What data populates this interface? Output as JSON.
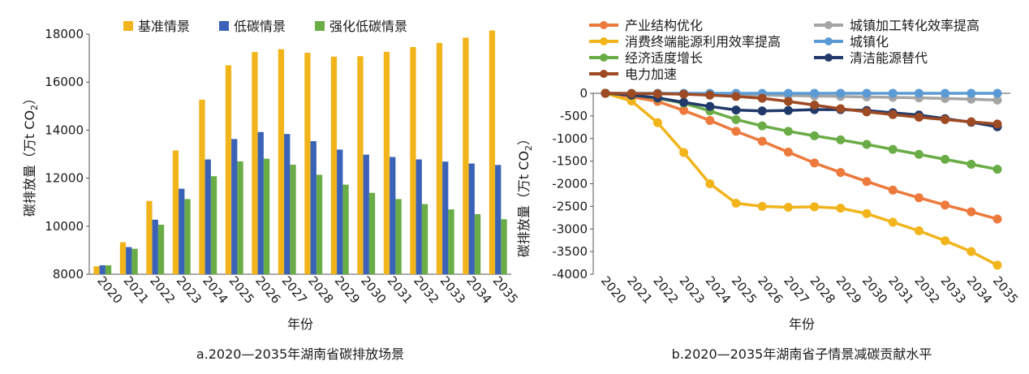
{
  "chart_data": [
    {
      "type": "bar",
      "title": "a.2020—2035年湖南省碳排放场景",
      "xlabel": "年份",
      "ylabel": "碳排放量（万t CO2）",
      "ylabel_main": "碳排放量（万t CO",
      "ylabel_sub": "2",
      "ylabel_end": "）",
      "ylim": [
        8000,
        18000
      ],
      "yticks": [
        8000,
        10000,
        12000,
        14000,
        16000,
        18000
      ],
      "legend_position": "top",
      "categories": [
        "2020",
        "2021",
        "2022",
        "2023",
        "2024",
        "2025",
        "2026",
        "2027",
        "2028",
        "2029",
        "2030",
        "2031",
        "2032",
        "2033",
        "2034",
        "2035"
      ],
      "series": [
        {
          "name": "基准情景",
          "color": "#f2b41b",
          "values": [
            8330,
            9330,
            11050,
            13150,
            15270,
            16700,
            17250,
            17370,
            17220,
            17060,
            17080,
            17260,
            17460,
            17630,
            17850,
            18150
          ]
        },
        {
          "name": "低碳情景",
          "color": "#3a63b8",
          "values": [
            8370,
            9130,
            10270,
            11560,
            12780,
            13630,
            13920,
            13840,
            13540,
            13190,
            12980,
            12880,
            12780,
            12690,
            12610,
            12550
          ]
        },
        {
          "name": "强化低碳情景",
          "color": "#6aac46",
          "values": [
            8370,
            9060,
            10060,
            11130,
            12080,
            12700,
            12810,
            12560,
            12140,
            11730,
            11390,
            11130,
            10920,
            10700,
            10500,
            10290
          ]
        }
      ]
    },
    {
      "type": "line",
      "title": "b.2020—2035年湖南省子情景减碳贡献水平",
      "xlabel": "年份",
      "ylabel": "碳排放量（万t CO2）",
      "ylabel_main": "碳排放量（万t CO",
      "ylabel_sub": "2",
      "ylabel_end": "）",
      "ylim": [
        -4000,
        0
      ],
      "yticks": [
        0,
        -500,
        -1000,
        -1500,
        -2000,
        -2500,
        -3000,
        -3500,
        -4000
      ],
      "legend_position": "top",
      "categories": [
        "2020",
        "2021",
        "2022",
        "2023",
        "2024",
        "2025",
        "2026",
        "2027",
        "2028",
        "2029",
        "2030",
        "2031",
        "2032",
        "2033",
        "2034",
        "2035"
      ],
      "series": [
        {
          "name": "产业结构优化",
          "color": "#ec7a3c",
          "values": [
            0,
            -80,
            -180,
            -380,
            -600,
            -840,
            -1060,
            -1300,
            -1540,
            -1750,
            -1950,
            -2140,
            -2310,
            -2470,
            -2620,
            -2780
          ]
        },
        {
          "name": "城镇加工转化效率提高",
          "color": "#a5a5a5",
          "values": [
            0,
            -5,
            -10,
            -15,
            -20,
            -30,
            -40,
            -50,
            -60,
            -70,
            -80,
            -90,
            -100,
            -115,
            -130,
            -150
          ]
        },
        {
          "name": "消费终端能源利用效率提高",
          "color": "#f2b41b",
          "values": [
            0,
            -170,
            -650,
            -1310,
            -2000,
            -2430,
            -2500,
            -2520,
            -2510,
            -2540,
            -2660,
            -2850,
            -3040,
            -3260,
            -3500,
            -3800
          ]
        },
        {
          "name": "城镇化",
          "color": "#5b9bd5",
          "values": [
            0,
            0,
            0,
            0,
            0,
            0,
            0,
            0,
            0,
            0,
            0,
            0,
            0,
            0,
            0,
            0
          ]
        },
        {
          "name": "经济适度增长",
          "color": "#6aac46",
          "values": [
            0,
            -40,
            -110,
            -220,
            -390,
            -580,
            -720,
            -840,
            -940,
            -1030,
            -1130,
            -1240,
            -1350,
            -1460,
            -1570,
            -1680
          ]
        },
        {
          "name": "清洁能源替代",
          "color": "#213a6b",
          "values": [
            0,
            -40,
            -100,
            -200,
            -290,
            -370,
            -390,
            -380,
            -360,
            -360,
            -380,
            -430,
            -480,
            -560,
            -640,
            -740
          ]
        },
        {
          "name": "电力加速",
          "color": "#9e4a23",
          "values": [
            0,
            -5,
            -10,
            -20,
            -40,
            -70,
            -110,
            -180,
            -260,
            -340,
            -410,
            -470,
            -530,
            -580,
            -630,
            -680
          ]
        }
      ]
    }
  ]
}
